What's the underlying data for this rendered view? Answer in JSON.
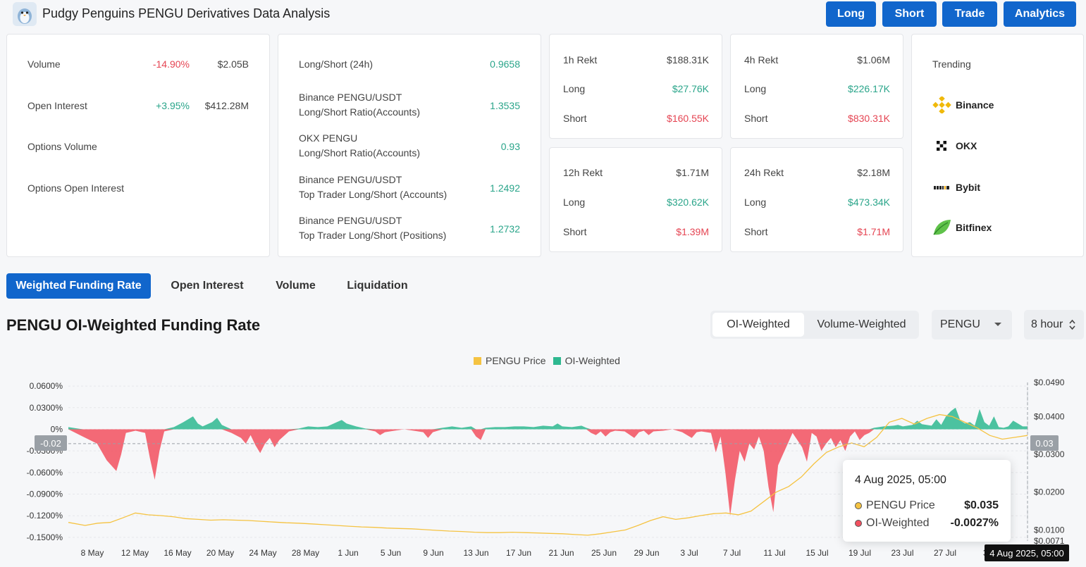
{
  "header": {
    "title": "Pudgy Penguins PENGU Derivatives Data Analysis",
    "buttons": [
      "Long",
      "Short",
      "Trade",
      "Analytics"
    ]
  },
  "summary": {
    "volume": {
      "label": "Volume",
      "change": "-14.90%",
      "value": "$2.05B"
    },
    "open_interest": {
      "label": "Open Interest",
      "change": "+3.95%",
      "value": "$412.28M"
    },
    "options_volume": {
      "label": "Options Volume"
    },
    "options_open_interest": {
      "label": "Options Open Interest"
    }
  },
  "ratios": [
    {
      "line1": "Long/Short (24h)",
      "line2": "",
      "value": "0.9658"
    },
    {
      "line1": "Binance PENGU/USDT",
      "line2": "Long/Short Ratio(Accounts)",
      "value": "1.3535"
    },
    {
      "line1": "OKX PENGU",
      "line2": "Long/Short Ratio(Accounts)",
      "value": "0.93"
    },
    {
      "line1": "Binance PENGU/USDT",
      "line2": "Top Trader Long/Short (Accounts)",
      "value": "1.2492"
    },
    {
      "line1": "Binance PENGU/USDT",
      "line2": "Top Trader Long/Short (Positions)",
      "value": "1.2732"
    }
  ],
  "rekt": [
    {
      "label": "1h Rekt",
      "total": "$188.31K",
      "long_label": "Long",
      "long": "$27.76K",
      "short_label": "Short",
      "short": "$160.55K"
    },
    {
      "label": "4h Rekt",
      "total": "$1.06M",
      "long_label": "Long",
      "long": "$226.17K",
      "short_label": "Short",
      "short": "$830.31K"
    },
    {
      "label": "12h Rekt",
      "total": "$1.71M",
      "long_label": "Long",
      "long": "$320.62K",
      "short_label": "Short",
      "short": "$1.39M"
    },
    {
      "label": "24h Rekt",
      "total": "$2.18M",
      "long_label": "Long",
      "long": "$473.34K",
      "short_label": "Short",
      "short": "$1.71M"
    }
  ],
  "trending": {
    "title": "Trending",
    "items": [
      "Binance",
      "OKX",
      "Bybit",
      "Bitfinex"
    ]
  },
  "tabs": [
    "Weighted Funding Rate",
    "Open Interest",
    "Volume",
    "Liquidation"
  ],
  "chart_header": {
    "title": "PENGU OI-Weighted Funding Rate",
    "segments": [
      "OI-Weighted",
      "Volume-Weighted"
    ],
    "symbol": "PENGU",
    "interval": "8 hour"
  },
  "chart_data": {
    "type": "area",
    "legend": [
      "PENGU Price",
      "OI-Weighted"
    ],
    "legend_position": "top",
    "y_left_ticks": [
      "0.0600%",
      "0.0300%",
      "0%",
      "-0.0300%",
      "-0.0600%",
      "-0.0900%",
      "-0.1200%",
      "-0.1500%"
    ],
    "y_right_ticks": [
      "$0.0490",
      "$0.0400",
      "$0.0300",
      "$0.0200",
      "$0.0100",
      "$0.0071"
    ],
    "x_ticks": [
      "8 May",
      "12 May",
      "16 May",
      "20 May",
      "24 May",
      "28 May",
      "1 Jun",
      "5 Jun",
      "9 Jun",
      "13 Jun",
      "17 Jun",
      "21 Jun",
      "25 Jun",
      "29 Jun",
      "3 Jul",
      "7 Jul",
      "11 Jul",
      "15 Jul",
      "19 Jul",
      "23 Jul",
      "27 Jul",
      "31"
    ],
    "ylim_left": [
      -0.155,
      0.065
    ],
    "ylim_right": [
      0.0071,
      0.049
    ],
    "series": [
      {
        "name": "OI-Weighted",
        "unit": "%",
        "color_pos": "#2eb890",
        "color_neg": "#f2505f",
        "points": [
          [
            0,
            0.003
          ],
          [
            3,
            -0.01
          ],
          [
            6,
            -0.02
          ],
          [
            8,
            -0.043
          ],
          [
            10,
            -0.058
          ],
          [
            11,
            -0.035
          ],
          [
            12,
            -0.005
          ],
          [
            14,
            -0.002
          ],
          [
            16,
            -0.005
          ],
          [
            17,
            -0.04
          ],
          [
            18,
            -0.07
          ],
          [
            19,
            -0.03
          ],
          [
            20,
            -0.003
          ],
          [
            22,
            0.003
          ],
          [
            24,
            0.01
          ],
          [
            26,
            0.018
          ],
          [
            27,
            0.008
          ],
          [
            28,
            0.004
          ],
          [
            30,
            0.01
          ],
          [
            31,
            0.016
          ],
          [
            32,
            0.006
          ],
          [
            34,
            -0.005
          ],
          [
            36,
            -0.012
          ],
          [
            37,
            -0.02
          ],
          [
            38,
            -0.008
          ],
          [
            39,
            -0.022
          ],
          [
            40,
            -0.033
          ],
          [
            41,
            -0.02
          ],
          [
            42,
            -0.012
          ],
          [
            43,
            -0.025
          ],
          [
            44,
            -0.015
          ],
          [
            46,
            -0.003
          ],
          [
            48,
            0.001
          ],
          [
            50,
            0.004
          ],
          [
            52,
            0.003
          ],
          [
            54,
            0.004
          ],
          [
            56,
            0.01
          ],
          [
            57,
            0.013
          ],
          [
            58,
            0.008
          ],
          [
            60,
            0.004
          ],
          [
            62,
            0.001
          ],
          [
            64,
            -0.003
          ],
          [
            65,
            -0.008
          ],
          [
            66,
            -0.004
          ],
          [
            68,
            -0.002
          ],
          [
            70,
            0.0
          ],
          [
            72,
            -0.002
          ],
          [
            74,
            -0.004
          ],
          [
            75,
            -0.012
          ],
          [
            76,
            -0.004
          ],
          [
            78,
            0.002
          ],
          [
            80,
            0.004
          ],
          [
            82,
            0.002
          ],
          [
            84,
            0.004
          ],
          [
            85,
            -0.01
          ],
          [
            86,
            -0.015
          ],
          [
            87,
            0.002
          ],
          [
            89,
            0.003
          ],
          [
            91,
            0.003
          ],
          [
            93,
            0.004
          ],
          [
            95,
            0.004
          ],
          [
            97,
            0.003
          ],
          [
            99,
            0.005
          ],
          [
            101,
            0.004
          ],
          [
            102,
            0.008
          ],
          [
            103,
            0.004
          ],
          [
            105,
            0.003
          ],
          [
            107,
            0.005
          ],
          [
            108,
            0.002
          ],
          [
            109,
            -0.005
          ],
          [
            110,
            -0.008
          ],
          [
            111,
            -0.003
          ],
          [
            112,
            -0.01
          ],
          [
            113,
            -0.004
          ],
          [
            114,
            -0.002
          ],
          [
            116,
            -0.003
          ],
          [
            118,
            -0.012
          ],
          [
            119,
            -0.004
          ],
          [
            120,
            -0.002
          ],
          [
            121,
            -0.008
          ],
          [
            122,
            -0.003
          ],
          [
            124,
            -0.002
          ],
          [
            126,
            0.0
          ],
          [
            128,
            -0.004
          ],
          [
            130,
            -0.012
          ],
          [
            131,
            -0.004
          ],
          [
            132,
            -0.003
          ],
          [
            134,
            -0.005
          ],
          [
            135,
            -0.032
          ],
          [
            136,
            -0.01
          ],
          [
            137,
            -0.06
          ],
          [
            138,
            -0.12
          ],
          [
            139,
            -0.07
          ],
          [
            140,
            -0.03
          ],
          [
            141,
            -0.045
          ],
          [
            142,
            -0.02
          ],
          [
            143,
            -0.028
          ],
          [
            144,
            -0.01
          ],
          [
            145,
            -0.03
          ],
          [
            146,
            -0.08
          ],
          [
            147,
            -0.115
          ],
          [
            148,
            -0.05
          ],
          [
            149,
            -0.035
          ],
          [
            150,
            -0.02
          ],
          [
            151,
            -0.005
          ],
          [
            152,
            -0.015
          ],
          [
            153,
            -0.025
          ],
          [
            154,
            -0.045
          ],
          [
            155,
            -0.005
          ],
          [
            156,
            -0.01
          ],
          [
            157,
            -0.03
          ],
          [
            158,
            -0.02
          ],
          [
            159,
            -0.012
          ],
          [
            160,
            -0.025
          ],
          [
            161,
            -0.015
          ],
          [
            162,
            -0.03
          ],
          [
            163,
            -0.01
          ],
          [
            164,
            -0.003
          ],
          [
            165,
            -0.015
          ],
          [
            166,
            -0.008
          ],
          [
            167,
            -0.005
          ],
          [
            168,
            0.002
          ],
          [
            170,
            0.004
          ],
          [
            172,
            0.005
          ],
          [
            173,
            0.006
          ],
          [
            174,
            0.004
          ],
          [
            176,
            0.006
          ],
          [
            177,
            0.012
          ],
          [
            178,
            0.007
          ],
          [
            180,
            0.005
          ],
          [
            181,
            0.014
          ],
          [
            182,
            0.006
          ],
          [
            183,
            0.018
          ],
          [
            184,
            0.025
          ],
          [
            185,
            0.03
          ],
          [
            186,
            0.012
          ],
          [
            187,
            0.008
          ],
          [
            188,
            0.01
          ],
          [
            189,
            0.005
          ],
          [
            190,
            0.028
          ],
          [
            191,
            0.01
          ],
          [
            192,
            0.005
          ],
          [
            193,
            0.018
          ],
          [
            194,
            0.003
          ],
          [
            195,
            0.002
          ],
          [
            196,
            0.004
          ],
          [
            197,
            0.012
          ],
          [
            198,
            0.008
          ],
          [
            199,
            0.004
          ],
          [
            200,
            0.004
          ]
        ]
      },
      {
        "name": "PENGU Price",
        "unit": "$",
        "color": "#f5c342",
        "points": [
          [
            0,
            0.012
          ],
          [
            4,
            0.0112
          ],
          [
            7,
            0.0118
          ],
          [
            10,
            0.012
          ],
          [
            13,
            0.0132
          ],
          [
            16,
            0.0145
          ],
          [
            19,
            0.014
          ],
          [
            22,
            0.0138
          ],
          [
            25,
            0.0135
          ],
          [
            28,
            0.013
          ],
          [
            31,
            0.0128
          ],
          [
            34,
            0.0126
          ],
          [
            37,
            0.0127
          ],
          [
            40,
            0.0126
          ],
          [
            43,
            0.0125
          ],
          [
            46,
            0.0123
          ],
          [
            49,
            0.0121
          ],
          [
            52,
            0.0119
          ],
          [
            55,
            0.0118
          ],
          [
            58,
            0.0116
          ],
          [
            61,
            0.0114
          ],
          [
            64,
            0.0112
          ],
          [
            67,
            0.011
          ],
          [
            70,
            0.0108
          ],
          [
            73,
            0.0107
          ],
          [
            76,
            0.0105
          ],
          [
            79,
            0.0104
          ],
          [
            82,
            0.0103
          ],
          [
            85,
            0.0101
          ],
          [
            88,
            0.0099
          ],
          [
            91,
            0.0097
          ],
          [
            94,
            0.0096
          ],
          [
            97,
            0.0094
          ],
          [
            100,
            0.0093
          ],
          [
            103,
            0.0093
          ],
          [
            106,
            0.0094
          ],
          [
            109,
            0.0093
          ],
          [
            112,
            0.0092
          ],
          [
            115,
            0.0091
          ],
          [
            118,
            0.009
          ],
          [
            121,
            0.0088
          ],
          [
            124,
            0.0086
          ],
          [
            127,
            0.009
          ],
          [
            130,
            0.0095
          ],
          [
            133,
            0.01
          ],
          [
            136,
            0.0112
          ],
          [
            139,
            0.0125
          ],
          [
            142,
            0.0135
          ],
          [
            145,
            0.0128
          ],
          [
            148,
            0.0132
          ],
          [
            151,
            0.0138
          ],
          [
            154,
            0.0143
          ],
          [
            157,
            0.0145
          ],
          [
            160,
            0.014
          ],
          [
            163,
            0.015
          ],
          [
            166,
            0.0175
          ],
          [
            169,
            0.02
          ],
          [
            172,
            0.0215
          ],
          [
            175,
            0.024
          ],
          [
            178,
            0.0275
          ],
          [
            181,
            0.0305
          ],
          [
            184,
            0.032
          ],
          [
            187,
            0.033
          ],
          [
            190,
            0.032
          ],
          [
            193,
            0.0345
          ],
          [
            196,
            0.0385
          ],
          [
            199,
            0.0395
          ],
          [
            202,
            0.038
          ],
          [
            205,
            0.0395
          ],
          [
            208,
            0.0405
          ],
          [
            211,
            0.04
          ],
          [
            214,
            0.0385
          ],
          [
            217,
            0.037
          ],
          [
            220,
            0.035
          ],
          [
            223,
            0.034
          ],
          [
            226,
            0.0345
          ],
          [
            229,
            0.035
          ]
        ]
      }
    ],
    "tooltip": {
      "date": "4 Aug 2025, 05:00",
      "price_label": "PENGU Price",
      "price": "$0.035",
      "rate_label": "OI-Weighted",
      "rate": "-0.0027%"
    },
    "crosshair": {
      "x_label": "4 Aug 2025, 05:00",
      "y_left_label": "-0.02",
      "y_right_label": "0.03",
      "y_left_value": -0.02
    }
  }
}
